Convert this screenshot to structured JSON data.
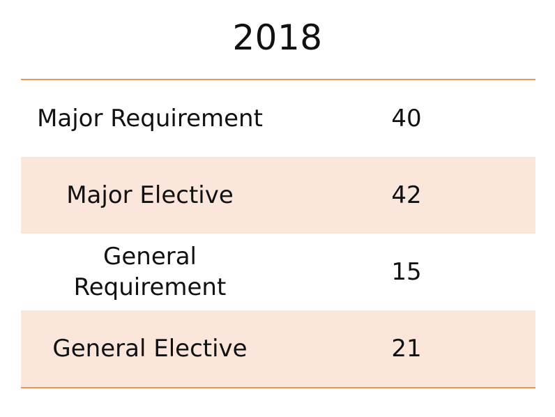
{
  "title": "2018",
  "rows": [
    {
      "label": "Major Requirement",
      "value": "40"
    },
    {
      "label": "Major Elective",
      "value": "42"
    },
    {
      "label": "General Requirement",
      "value": "15"
    },
    {
      "label": "General Elective",
      "value": "21"
    }
  ],
  "colors": {
    "rule": "#e59a5c",
    "alt_row": "#fae6da"
  }
}
